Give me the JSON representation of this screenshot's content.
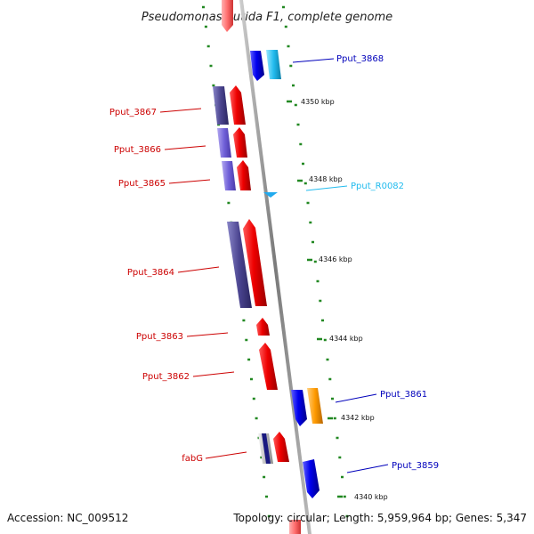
{
  "title": "Pseudomonas putida F1, complete genome",
  "footer": {
    "accession": "Accession: NC_009512",
    "topology": "Topology: circular; Length: 5,959,964 bp; Genes: 5,347"
  },
  "colors": {
    "forward_label": "#cc0000",
    "reverse_label": "#0000bb",
    "rna_label": "#22bbee",
    "backbone": "#8a8a8a",
    "tick": "#228822"
  },
  "ticks": [
    {
      "label": "4350 kbp"
    },
    {
      "label": "4348 kbp"
    },
    {
      "label": "4346 kbp"
    },
    {
      "label": "4344 kbp"
    },
    {
      "label": "4342 kbp"
    },
    {
      "label": "4340 kbp"
    }
  ],
  "genes": [
    {
      "label": "Pput_3868",
      "strand": "reverse"
    },
    {
      "label": "Pput_3867",
      "strand": "forward"
    },
    {
      "label": "Pput_3866",
      "strand": "forward"
    },
    {
      "label": "Pput_3865",
      "strand": "forward"
    },
    {
      "label": "Pput_R0082",
      "strand": "rna"
    },
    {
      "label": "Pput_3864",
      "strand": "forward"
    },
    {
      "label": "Pput_3863",
      "strand": "forward"
    },
    {
      "label": "Pput_3862",
      "strand": "forward"
    },
    {
      "label": "Pput_3861",
      "strand": "reverse"
    },
    {
      "label": "fabG",
      "strand": "forward"
    },
    {
      "label": "Pput_3859",
      "strand": "reverse"
    }
  ]
}
